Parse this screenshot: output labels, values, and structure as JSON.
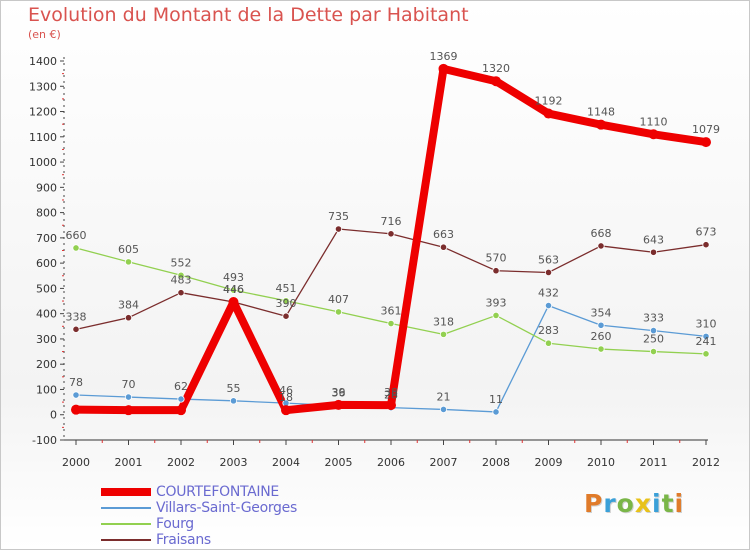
{
  "title": "Evolution du Montant de la Dette par Habitant",
  "subtitle": "(en €)",
  "logo_text": "Proxiti",
  "logo_colors": [
    "#e07b2a",
    "#3aa0d8",
    "#7ab648",
    "#e8c21a",
    "#3aa0d8",
    "#7ab648",
    "#e07b2a"
  ],
  "chart_data": {
    "type": "line",
    "x": [
      "2000",
      "2001",
      "2002",
      "2003",
      "2004",
      "2005",
      "2006",
      "2007",
      "2008",
      "2009",
      "2010",
      "2011",
      "2012"
    ],
    "ylim": [
      -100,
      1400
    ],
    "yticks": [
      "-100",
      "0",
      "100",
      "200",
      "300",
      "400",
      "500",
      "600",
      "700",
      "800",
      "900",
      "1000",
      "1100",
      "1200",
      "1300",
      "1400"
    ],
    "grid": false,
    "legend_position": "bottom-left",
    "series": [
      {
        "name": "COURTEFONTAINE",
        "color": "#ee0000",
        "width": 8,
        "values": [
          20,
          18,
          18,
          446,
          18,
          39,
          38,
          1369,
          1320,
          1192,
          1148,
          1110,
          1079
        ],
        "labels": [
          "",
          "",
          "",
          "446",
          "18",
          "39",
          "38",
          "1369",
          "1320",
          "1192",
          "1148",
          "1110",
          "1079"
        ]
      },
      {
        "name": "Villars-Saint-Georges",
        "color": "#5b9bd5",
        "width": 1.3,
        "values": [
          78,
          70,
          62,
          55,
          46,
          36,
          28,
          21,
          11,
          432,
          354,
          333,
          310
        ],
        "labels": [
          "78",
          "70",
          "62",
          "55",
          "46",
          "36",
          "28",
          "21",
          "11",
          "432",
          "354",
          "333",
          "310"
        ]
      },
      {
        "name": "Fourg",
        "color": "#92d050",
        "width": 1.3,
        "values": [
          660,
          605,
          552,
          493,
          451,
          407,
          361,
          318,
          393,
          283,
          260,
          250,
          241
        ],
        "labels": [
          "660",
          "605",
          "552",
          "493",
          "451",
          "407",
          "361",
          "318",
          "393",
          "283",
          "260",
          "250",
          "241"
        ]
      },
      {
        "name": "Fraisans",
        "color": "#7b2d2d",
        "width": 1.3,
        "values": [
          338,
          384,
          483,
          446,
          390,
          735,
          716,
          663,
          570,
          563,
          668,
          643,
          673
        ],
        "labels": [
          "338",
          "384",
          "483",
          "446",
          "390",
          "735",
          "716",
          "663",
          "570",
          "563",
          "668",
          "643",
          "673"
        ]
      }
    ]
  }
}
